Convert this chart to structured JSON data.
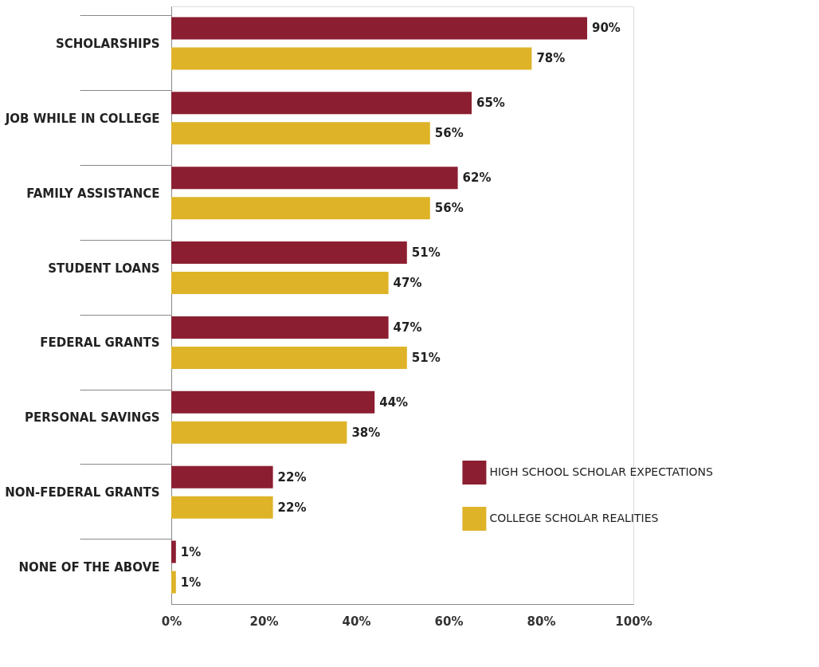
{
  "chart_data": {
    "type": "bar",
    "orientation": "horizontal",
    "categories": [
      "SCHOLARSHIPS",
      "JOB WHILE IN COLLEGE",
      "FAMILY ASSISTANCE",
      "STUDENT LOANS",
      "FEDERAL GRANTS",
      "PERSONAL SAVINGS",
      "NON-FEDERAL GRANTS",
      "NONE OF THE ABOVE"
    ],
    "series": [
      {
        "name": "HIGH SCHOOL SCHOLAR EXPECTATIONS",
        "color": "#8b1f31",
        "values": [
          90,
          65,
          62,
          51,
          47,
          44,
          22,
          1
        ],
        "value_labels": [
          "90%",
          "65%",
          "62%",
          "51%",
          "47%",
          "44%",
          "22%",
          "1%"
        ]
      },
      {
        "name": "COLLEGE SCHOLAR REALITIES",
        "color": "#deb328",
        "values": [
          78,
          56,
          56,
          47,
          51,
          38,
          22,
          1
        ],
        "value_labels": [
          "78%",
          "56%",
          "56%",
          "47%",
          "51%",
          "38%",
          "22%",
          "1%"
        ]
      }
    ],
    "xlim": [
      0,
      100
    ],
    "xticks": [
      {
        "value": 0,
        "label": "0%"
      },
      {
        "value": 20,
        "label": "20%"
      },
      {
        "value": 40,
        "label": "40%"
      },
      {
        "value": 60,
        "label": "60%"
      },
      {
        "value": 80,
        "label": "80%"
      },
      {
        "value": 100,
        "label": "100%"
      }
    ],
    "grid": false,
    "legend": "right"
  }
}
